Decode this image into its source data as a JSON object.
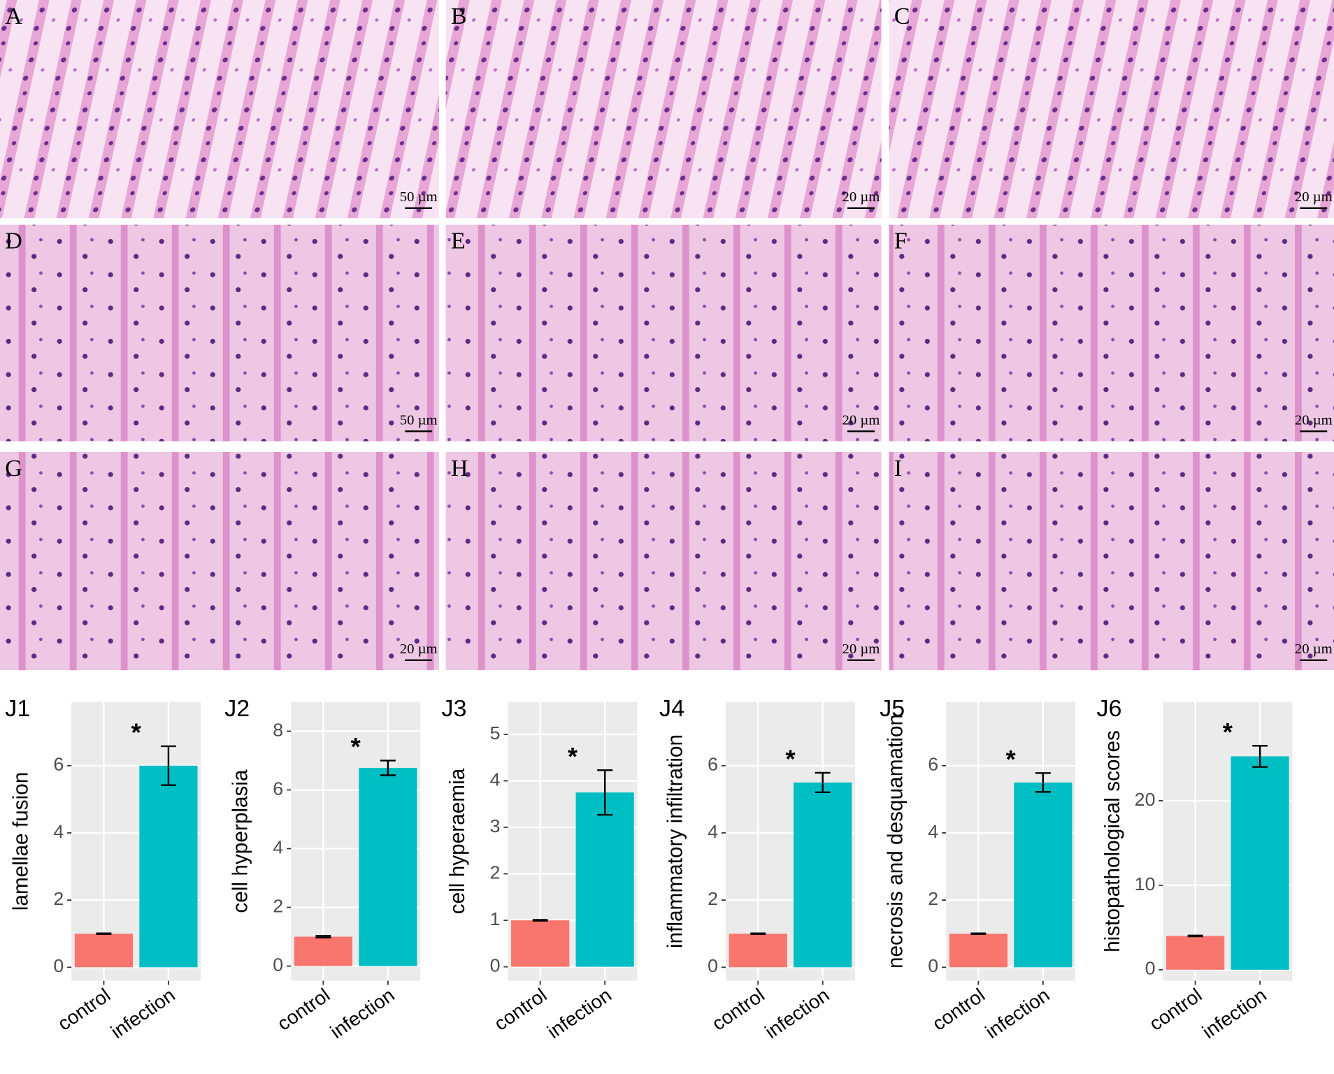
{
  "panels": [
    {
      "label": "A",
      "scale": "50 µm"
    },
    {
      "label": "B",
      "scale": "20 µm"
    },
    {
      "label": "C",
      "scale": "20 µm"
    },
    {
      "label": "D",
      "scale": "50 µm"
    },
    {
      "label": "E",
      "scale": "20 µm"
    },
    {
      "label": "F",
      "scale": "20 µm"
    },
    {
      "label": "G",
      "scale": "20 µm"
    },
    {
      "label": "H",
      "scale": "20 µm"
    },
    {
      "label": "I",
      "scale": "20 µm"
    }
  ],
  "chart_data": [
    {
      "type": "bar",
      "label": "J1",
      "ylabel": "lamellae fusion",
      "annotation": "*",
      "categories": [
        "control",
        "infection"
      ],
      "values": [
        1,
        6
      ],
      "errors": [
        0.01,
        0.58
      ],
      "colors": [
        "#F8766D",
        "#00BFC4"
      ],
      "ylim": [
        -0.4,
        7.9
      ],
      "yticks": [
        0,
        2,
        4,
        6
      ],
      "grid": true
    },
    {
      "type": "bar",
      "label": "J2",
      "ylabel": "cell hyperplasia",
      "annotation": "*",
      "categories": [
        "control",
        "infection"
      ],
      "values": [
        1,
        6.75
      ],
      "errors": [
        0.03,
        0.25
      ],
      "colors": [
        "#F8766D",
        "#00BFC4"
      ],
      "ylim": [
        -0.5,
        9
      ],
      "yticks": [
        0,
        2,
        4,
        6,
        8
      ],
      "grid": true
    },
    {
      "type": "bar",
      "label": "J3",
      "ylabel": "cell hyperaemia",
      "annotation": "*",
      "categories": [
        "control",
        "infection"
      ],
      "values": [
        1,
        3.75
      ],
      "errors": [
        0.01,
        0.48
      ],
      "colors": [
        "#F8766D",
        "#00BFC4"
      ],
      "ylim": [
        -0.3,
        5.7
      ],
      "yticks": [
        0,
        1,
        2,
        3,
        4,
        5
      ],
      "grid": true
    },
    {
      "type": "bar",
      "label": "J4",
      "ylabel": "inflammatory infiltration",
      "annotation": "*",
      "categories": [
        "control",
        "infection"
      ],
      "values": [
        1,
        5.5
      ],
      "errors": [
        0.01,
        0.29
      ],
      "colors": [
        "#F8766D",
        "#00BFC4"
      ],
      "ylim": [
        -0.4,
        7.9
      ],
      "yticks": [
        0,
        2,
        4,
        6
      ],
      "grid": true
    },
    {
      "type": "bar",
      "label": "J5",
      "ylabel": "necrosis and desquamation",
      "annotation": "*",
      "categories": [
        "control",
        "infection"
      ],
      "values": [
        1,
        5.5
      ],
      "errors": [
        0.01,
        0.28
      ],
      "colors": [
        "#F8766D",
        "#00BFC4"
      ],
      "ylim": [
        -0.4,
        7.9
      ],
      "yticks": [
        0,
        2,
        4,
        6
      ],
      "grid": true
    },
    {
      "type": "bar",
      "label": "J6",
      "ylabel": "histopathological scores",
      "annotation": "*",
      "categories": [
        "control",
        "infection"
      ],
      "values": [
        4,
        25.25
      ],
      "errors": [
        0.05,
        1.25
      ],
      "colors": [
        "#F8766D",
        "#00BFC4"
      ],
      "ylim": [
        -1.3,
        31.7
      ],
      "yticks": [
        0,
        10,
        20
      ],
      "grid": true
    }
  ]
}
